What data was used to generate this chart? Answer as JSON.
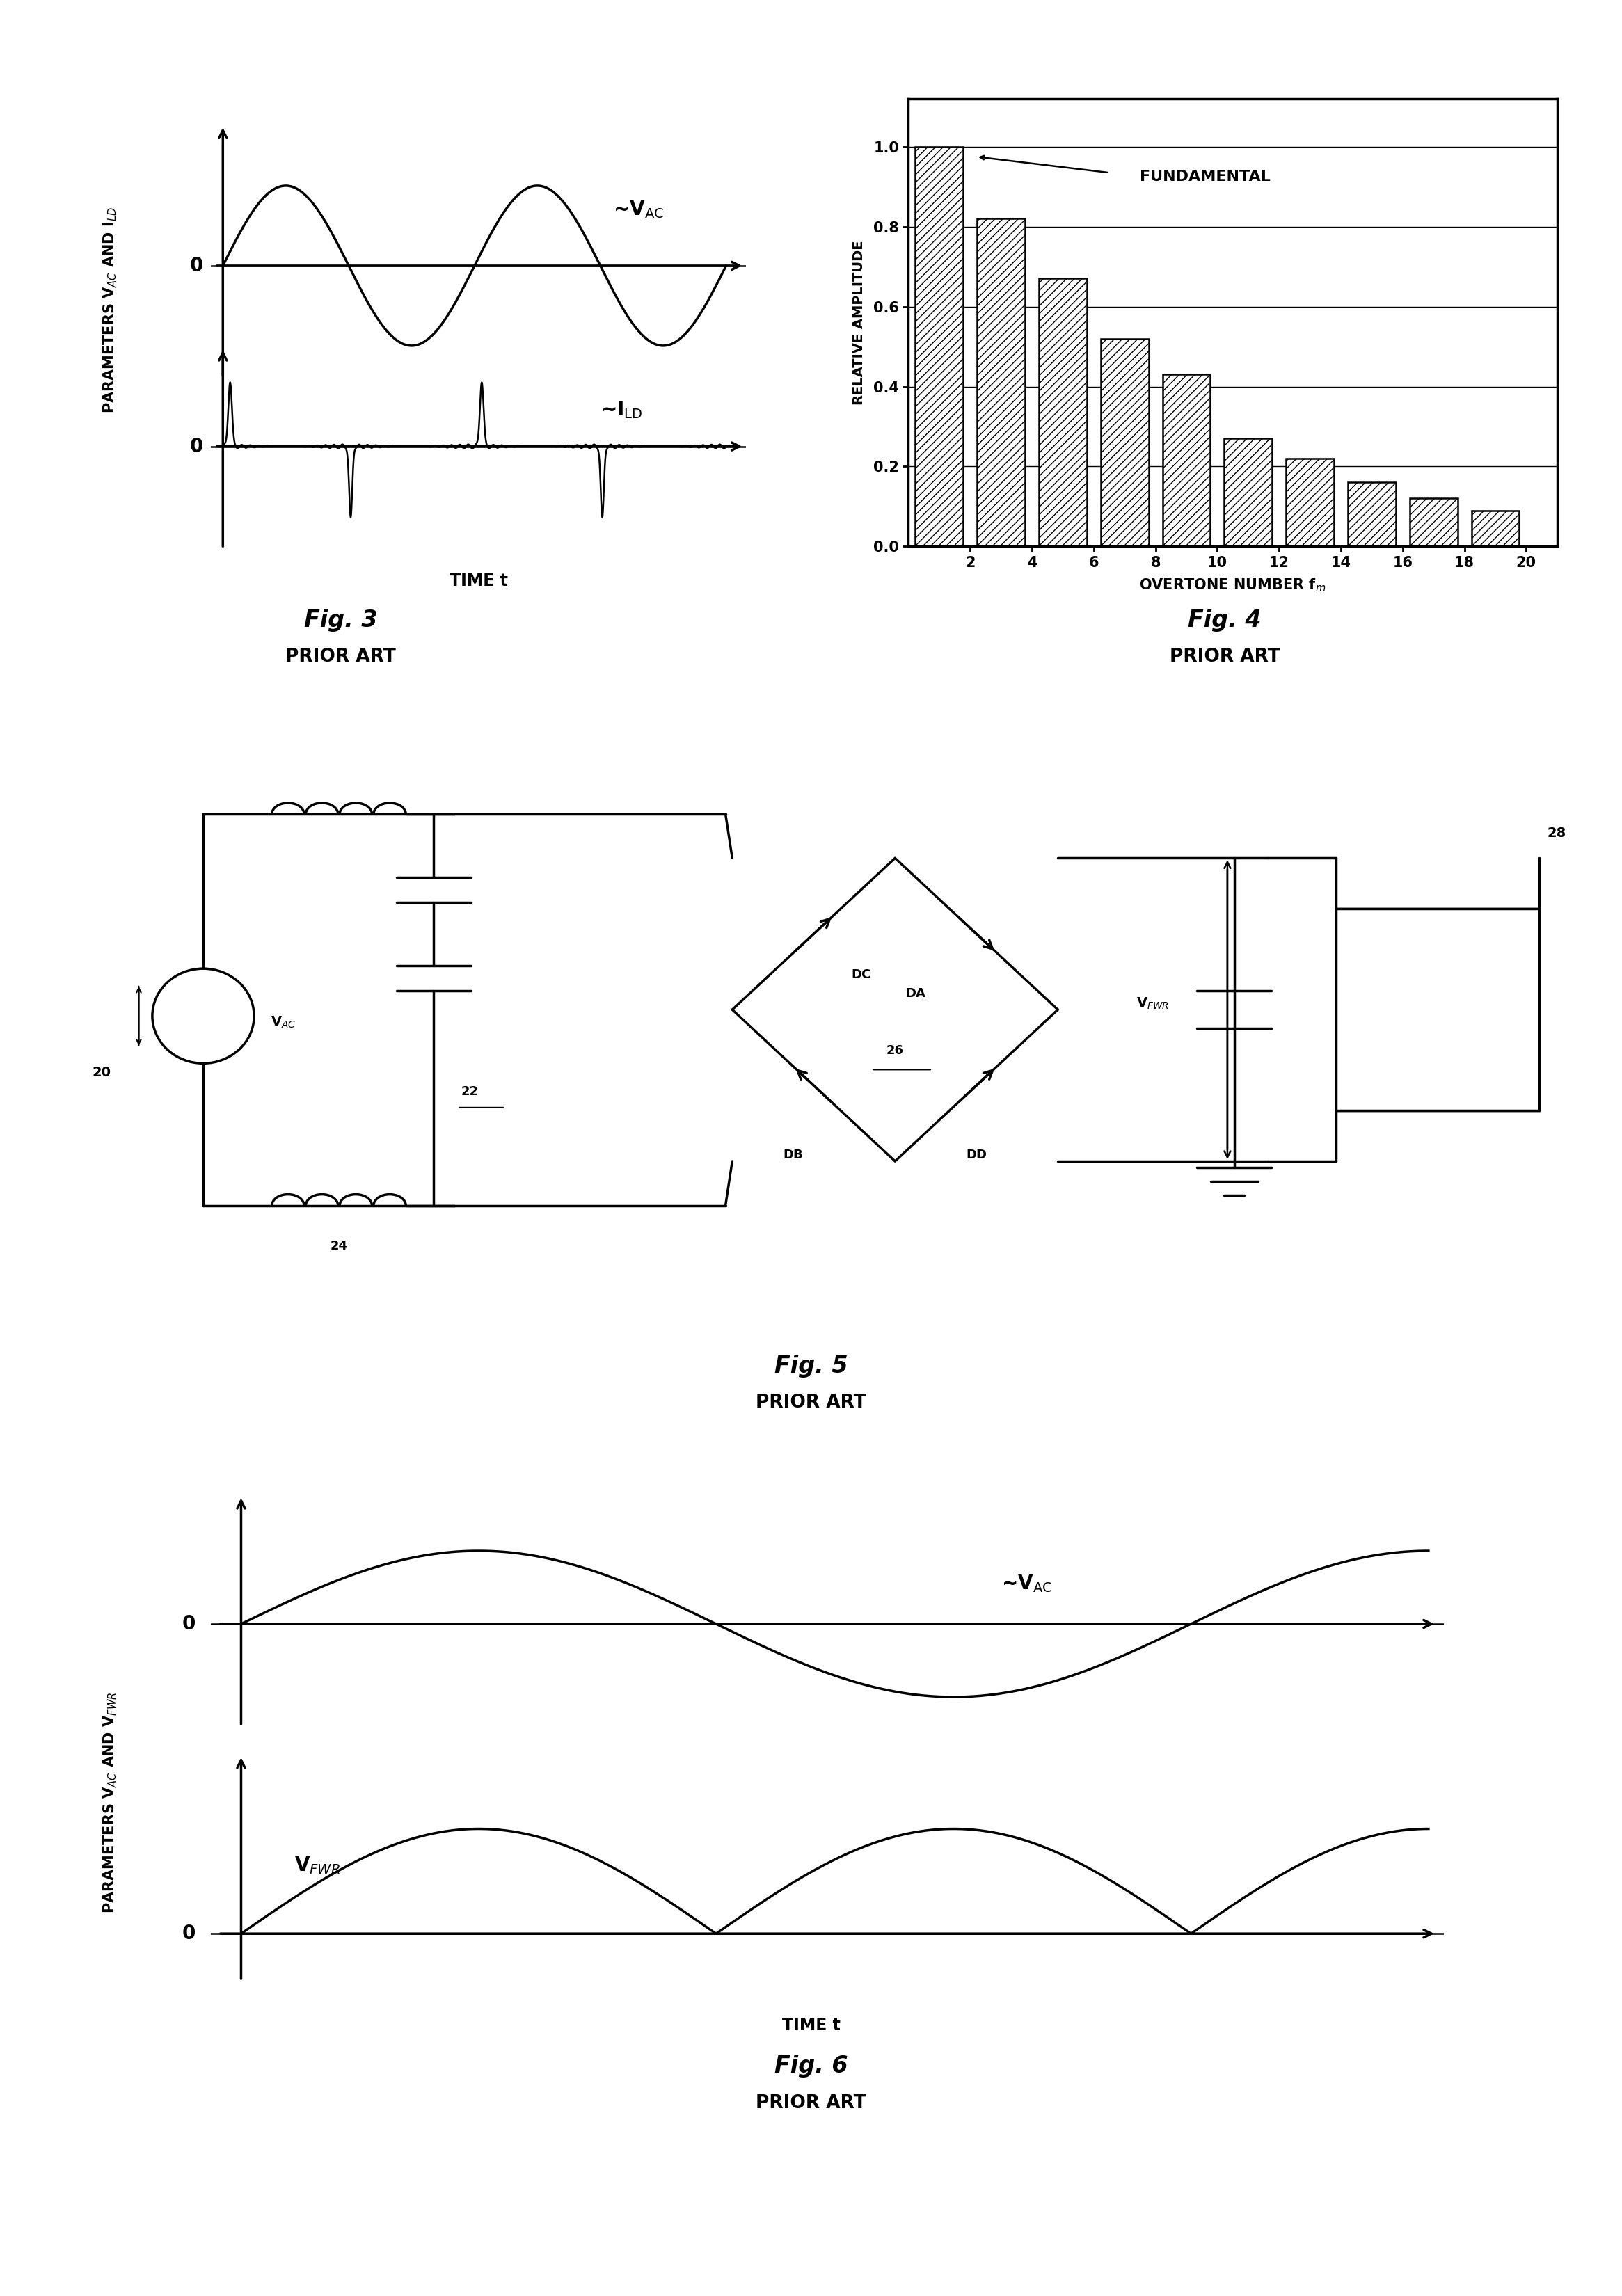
{
  "fig3_title": "Fig. 3",
  "fig3_subtitle": "PRIOR ART",
  "fig4_title": "Fig. 4",
  "fig4_subtitle": "PRIOR ART",
  "fig5_title": "Fig. 5",
  "fig5_subtitle": "PRIOR ART",
  "fig6_title": "Fig. 6",
  "fig6_subtitle": "PRIOR ART",
  "fig4_overtones": [
    1,
    3,
    5,
    7,
    9,
    11,
    13,
    15,
    17,
    19
  ],
  "fig4_amplitudes": [
    1.0,
    0.82,
    0.67,
    0.52,
    0.43,
    0.27,
    0.22,
    0.16,
    0.12,
    0.09
  ],
  "fig4_yticks": [
    0.0,
    0.2,
    0.4,
    0.6,
    0.8,
    1.0
  ],
  "fig4_xticks": [
    2,
    4,
    6,
    8,
    10,
    12,
    14,
    16,
    18,
    20
  ],
  "background_color": "#ffffff",
  "line_color": "#000000"
}
